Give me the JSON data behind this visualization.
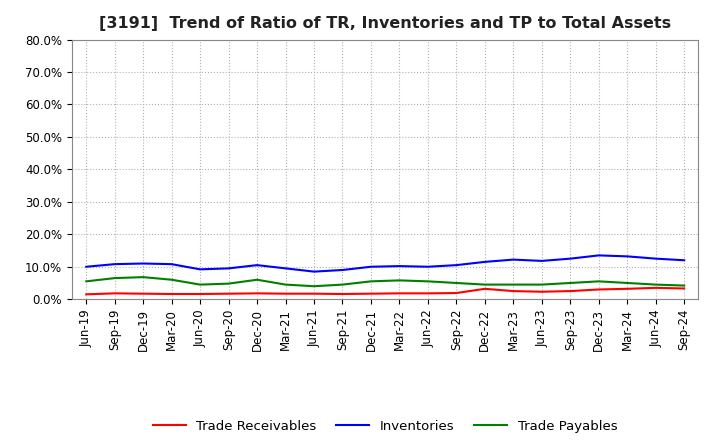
{
  "title": "[3191]  Trend of Ratio of TR, Inventories and TP to Total Assets",
  "x_labels": [
    "Jun-19",
    "Sep-19",
    "Dec-19",
    "Mar-20",
    "Jun-20",
    "Sep-20",
    "Dec-20",
    "Mar-21",
    "Jun-21",
    "Sep-21",
    "Dec-21",
    "Mar-22",
    "Jun-22",
    "Sep-22",
    "Dec-22",
    "Mar-23",
    "Jun-23",
    "Sep-23",
    "Dec-23",
    "Mar-24",
    "Jun-24",
    "Sep-24"
  ],
  "trade_receivables": [
    1.5,
    1.8,
    1.7,
    1.6,
    1.6,
    1.7,
    1.8,
    1.7,
    1.7,
    1.6,
    1.7,
    1.8,
    1.8,
    1.9,
    3.2,
    2.5,
    2.3,
    2.5,
    3.0,
    3.2,
    3.5,
    3.3
  ],
  "inventories": [
    10.0,
    10.8,
    11.0,
    10.8,
    9.2,
    9.5,
    10.5,
    9.5,
    8.5,
    9.0,
    10.0,
    10.2,
    10.0,
    10.5,
    11.5,
    12.2,
    11.8,
    12.5,
    13.5,
    13.2,
    12.5,
    12.0
  ],
  "trade_payables": [
    5.5,
    6.5,
    6.8,
    6.0,
    4.5,
    4.8,
    6.0,
    4.5,
    4.0,
    4.5,
    5.5,
    5.8,
    5.5,
    5.0,
    4.5,
    4.5,
    4.5,
    5.0,
    5.5,
    5.0,
    4.5,
    4.2
  ],
  "tr_color": "#ff0000",
  "inv_color": "#0000ff",
  "tp_color": "#008000",
  "ylim": [
    0,
    80
  ],
  "yticks": [
    0,
    10,
    20,
    30,
    40,
    50,
    60,
    70,
    80
  ],
  "ytick_labels": [
    "0.0%",
    "10.0%",
    "20.0%",
    "30.0%",
    "40.0%",
    "50.0%",
    "60.0%",
    "70.0%",
    "80.0%"
  ],
  "background_color": "#ffffff",
  "grid_color": "#aaaaaa",
  "legend_labels": [
    "Trade Receivables",
    "Inventories",
    "Trade Payables"
  ],
  "title_fontsize": 11.5,
  "axis_fontsize": 8.5,
  "legend_fontsize": 9.5
}
